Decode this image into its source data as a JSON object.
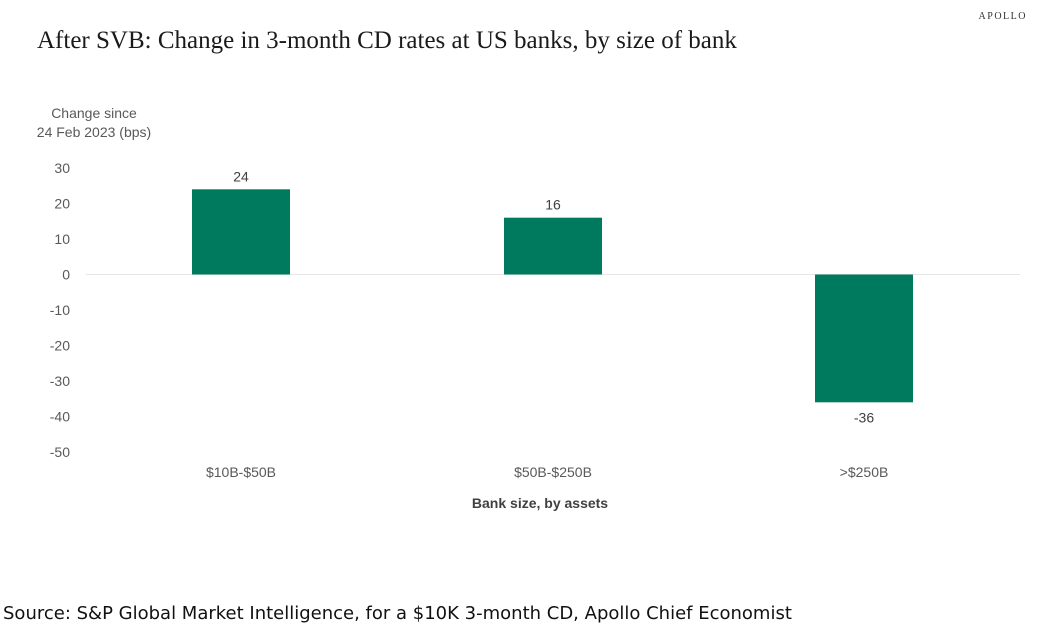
{
  "brand": "APOLLO",
  "title": "After SVB: Change in 3-month CD rates at US banks, by size of bank",
  "source": "Source: S&P Global Market Intelligence, for a $10K 3-month CD, Apollo Chief Economist",
  "colors": {
    "bar": "#007a5e",
    "zero_line": "#e6e6e6",
    "text": "#595959"
  },
  "chart_data": {
    "type": "bar",
    "title": "After SVB: Change in 3-month CD rates at US banks, by size of bank",
    "ylabel_line1": "Change since",
    "ylabel_line2": "24 Feb 2023 (bps)",
    "xlabel": "Bank size, by assets",
    "categories": [
      "$10B-$50B",
      "$50B-$250B",
      ">$250B"
    ],
    "values": [
      24,
      16,
      -36
    ],
    "data_labels": [
      "24",
      "16",
      "-36"
    ],
    "ylim": [
      -50,
      30
    ],
    "yticks": [
      30,
      20,
      10,
      0,
      -10,
      -20,
      -30,
      -40,
      -50
    ],
    "grid": false,
    "legend": "none"
  }
}
